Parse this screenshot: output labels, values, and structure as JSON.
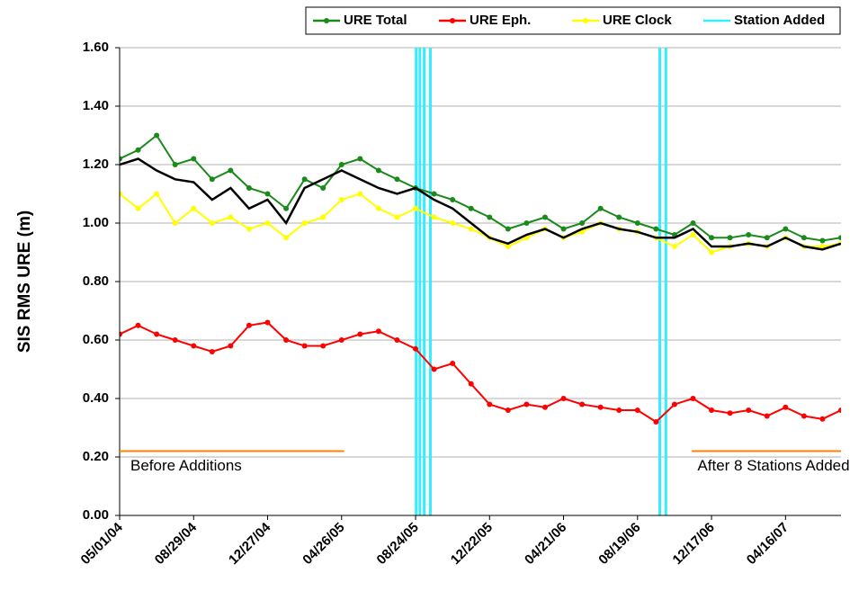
{
  "chart_data": {
    "type": "line",
    "ylabel": "SIS RMS URE (m)",
    "x": [
      "05/01/04",
      "05/31/04",
      "06/30/04",
      "07/30/04",
      "08/29/04",
      "09/28/04",
      "10/28/04",
      "11/27/04",
      "12/27/04",
      "01/26/05",
      "02/25/05",
      "03/27/05",
      "04/26/05",
      "05/26/05",
      "06/25/05",
      "07/25/05",
      "08/24/05",
      "09/23/05",
      "10/23/05",
      "11/22/05",
      "12/22/05",
      "01/21/06",
      "02/20/06",
      "03/22/06",
      "04/21/06",
      "05/21/06",
      "06/20/06",
      "07/20/06",
      "08/19/06",
      "09/18/06",
      "10/18/06",
      "11/17/06",
      "12/17/06",
      "01/16/07",
      "02/15/07",
      "03/17/07",
      "04/16/07",
      "05/16/07",
      "06/15/07",
      "07/15/07"
    ],
    "series": [
      {
        "name": "URE Total",
        "color": "#1a8a1a",
        "values": [
          1.22,
          1.25,
          1.3,
          1.2,
          1.22,
          1.15,
          1.18,
          1.12,
          1.1,
          1.05,
          1.15,
          1.12,
          1.2,
          1.22,
          1.18,
          1.15,
          1.12,
          1.1,
          1.08,
          1.05,
          1.02,
          0.98,
          1.0,
          1.02,
          0.98,
          1.0,
          1.05,
          1.02,
          1.0,
          0.98,
          0.96,
          1.0,
          0.95,
          0.95,
          0.96,
          0.95,
          0.98,
          0.95,
          0.94,
          0.95
        ]
      },
      {
        "name": "URE Eph.",
        "color": "#ff0000",
        "values": [
          0.62,
          0.65,
          0.62,
          0.6,
          0.58,
          0.56,
          0.58,
          0.65,
          0.66,
          0.6,
          0.58,
          0.58,
          0.6,
          0.62,
          0.63,
          0.6,
          0.57,
          0.5,
          0.52,
          0.45,
          0.38,
          0.36,
          0.38,
          0.37,
          0.4,
          0.38,
          0.37,
          0.36,
          0.36,
          0.32,
          0.38,
          0.4,
          0.36,
          0.35,
          0.36,
          0.34,
          0.37,
          0.34,
          0.33,
          0.36
        ]
      },
      {
        "name": "URE Clock",
        "color": "#ffff00",
        "values": [
          1.1,
          1.05,
          1.1,
          1.0,
          1.05,
          1.0,
          1.02,
          0.98,
          1.0,
          0.95,
          1.0,
          1.02,
          1.08,
          1.1,
          1.05,
          1.02,
          1.05,
          1.02,
          1.0,
          0.98,
          0.95,
          0.92,
          0.95,
          0.98,
          0.95,
          0.97,
          1.0,
          0.98,
          0.97,
          0.95,
          0.92,
          0.96,
          0.9,
          0.92,
          0.93,
          0.92,
          0.95,
          0.92,
          0.92,
          0.93
        ]
      }
    ],
    "trend": {
      "color": "#000000",
      "values": [
        1.2,
        1.22,
        1.18,
        1.15,
        1.14,
        1.08,
        1.12,
        1.05,
        1.08,
        1.0,
        1.12,
        1.15,
        1.18,
        1.15,
        1.12,
        1.1,
        1.12,
        1.08,
        1.05,
        1.0,
        0.95,
        0.93,
        0.96,
        0.98,
        0.95,
        0.98,
        1.0,
        0.98,
        0.97,
        0.95,
        0.95,
        0.98,
        0.92,
        0.92,
        0.93,
        0.92,
        0.95,
        0.92,
        0.91,
        0.93
      ]
    },
    "events": {
      "name": "Station Added",
      "color": "#33eeff",
      "x": [
        "08/25/05",
        "08/31/05",
        "09/07/05",
        "09/17/05",
        "09/24/06",
        "10/04/06"
      ]
    },
    "annotations": [
      {
        "text": "Before Additions",
        "span": [
          "05/01/04",
          "04/30/05"
        ],
        "y": 0.22
      },
      {
        "text": "After 8 Stations Added",
        "span": [
          "11/15/06",
          "07/15/07"
        ],
        "y": 0.22
      }
    ],
    "xlim": [
      "05/01/04",
      "07/15/07"
    ],
    "xticks": [
      "05/01/04",
      "08/29/04",
      "12/27/04",
      "04/26/05",
      "08/24/05",
      "12/22/05",
      "04/21/06",
      "08/19/06",
      "12/17/06",
      "04/16/07"
    ],
    "ylim": [
      0,
      1.6
    ],
    "yticks": [
      {
        "value": 0,
        "label": "0.00"
      },
      {
        "value": 0.2,
        "label": "0.20"
      },
      {
        "value": 0.4,
        "label": "0.40"
      },
      {
        "value": 0.6,
        "label": "0.60"
      },
      {
        "value": 0.8,
        "label": "0.80"
      },
      {
        "value": 1.0,
        "label": "1.00"
      },
      {
        "value": 1.2,
        "label": "1.20"
      },
      {
        "value": 1.4,
        "label": "1.40"
      },
      {
        "value": 1.6,
        "label": "1.60"
      }
    ],
    "grid": true
  }
}
